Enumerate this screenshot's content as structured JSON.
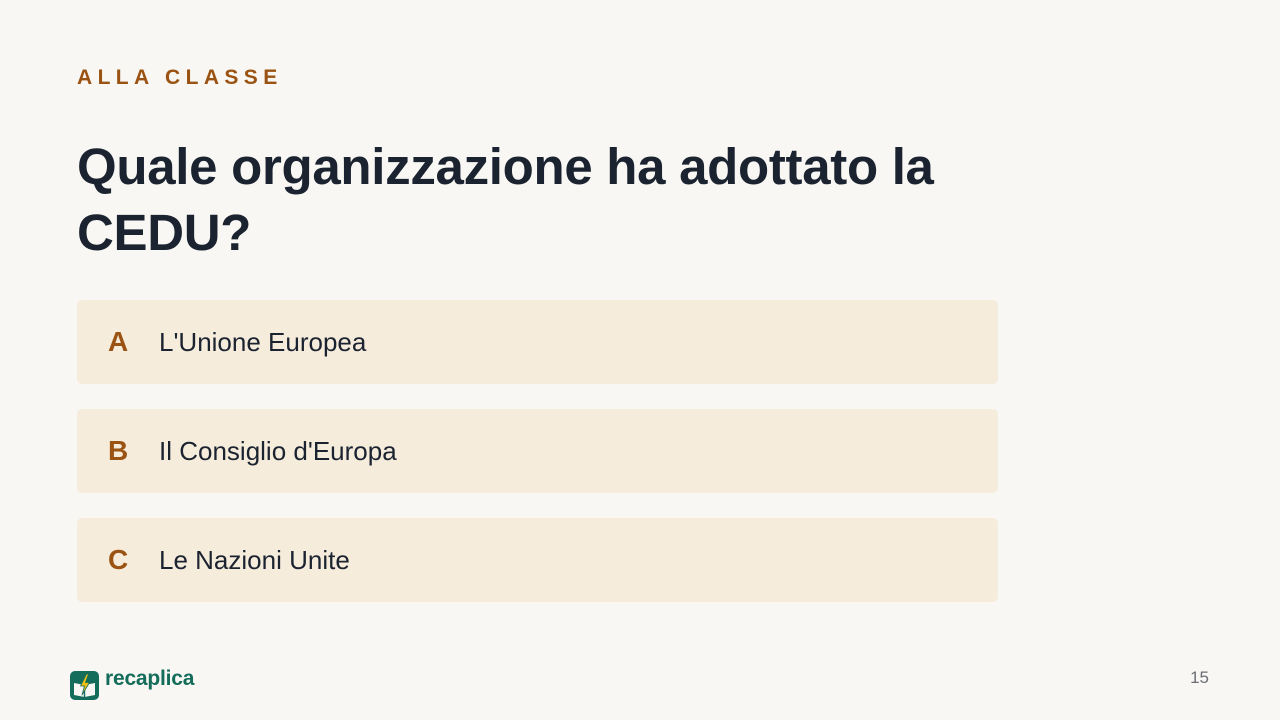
{
  "slide": {
    "eyebrow": "ALLA CLASSE",
    "question": "Quale organizzazione ha adottato la CEDU?",
    "options": [
      {
        "letter": "A",
        "text": "L'Unione Europea"
      },
      {
        "letter": "B",
        "text": "Il Consiglio d'Europa"
      },
      {
        "letter": "C",
        "text": "Le Nazioni Unite"
      }
    ]
  },
  "footer": {
    "brand_name": "recaplica",
    "logo_icon": "recaplica-logo-icon",
    "page_number": "15"
  },
  "colors": {
    "background": "#f8f7f3",
    "accent": "#9a5312",
    "option_background": "#f6ecdc",
    "heading": "#1b2330",
    "brand": "#146c5a",
    "bolt": "#f2c014"
  }
}
